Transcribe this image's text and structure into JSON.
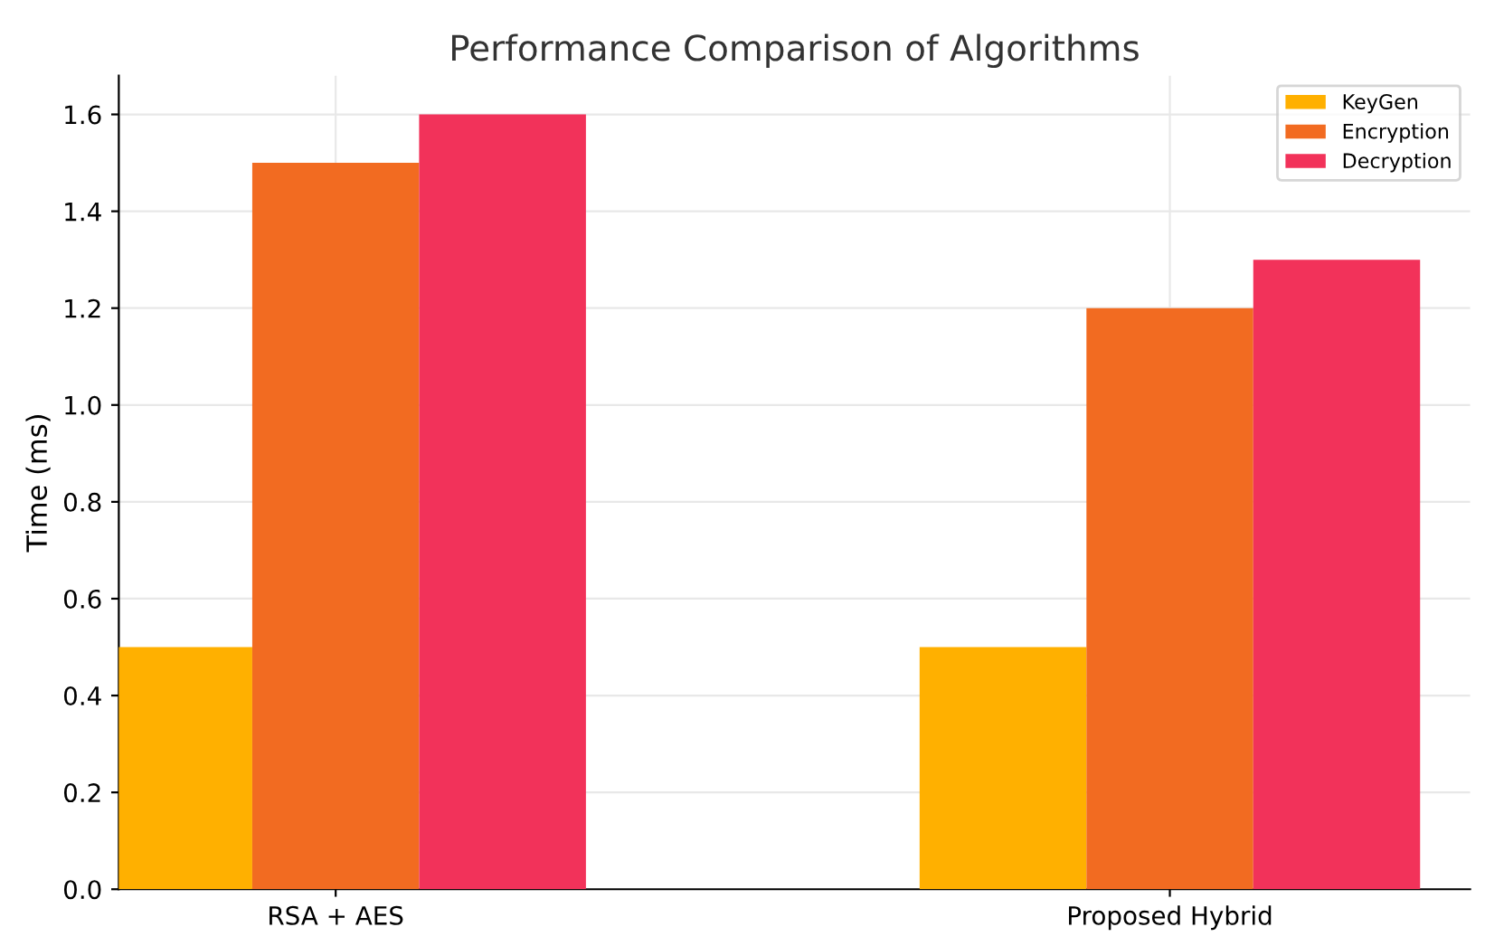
{
  "chart_data": {
    "type": "bar",
    "title": "Performance Comparison of Algorithms",
    "ylabel": "Time (ms)",
    "categories": [
      "RSA + AES",
      "Proposed Hybrid"
    ],
    "series": [
      {
        "name": "KeyGen",
        "color": "#ffb000",
        "values": [
          0.5,
          0.5
        ]
      },
      {
        "name": "Encryption",
        "color": "#f26b21",
        "values": [
          1.5,
          1.2
        ]
      },
      {
        "name": "Decryption",
        "color": "#f2325a",
        "values": [
          1.6,
          1.3
        ]
      }
    ],
    "ylim": [
      0,
      1.68
    ],
    "yticks": [
      {
        "value": 0,
        "label": "0.0"
      },
      0.2,
      0.4,
      0.6,
      0.8,
      {
        "value": 1,
        "label": "1.0"
      },
      1.2,
      1.4,
      1.6
    ],
    "grid": true,
    "legend": "top right"
  }
}
